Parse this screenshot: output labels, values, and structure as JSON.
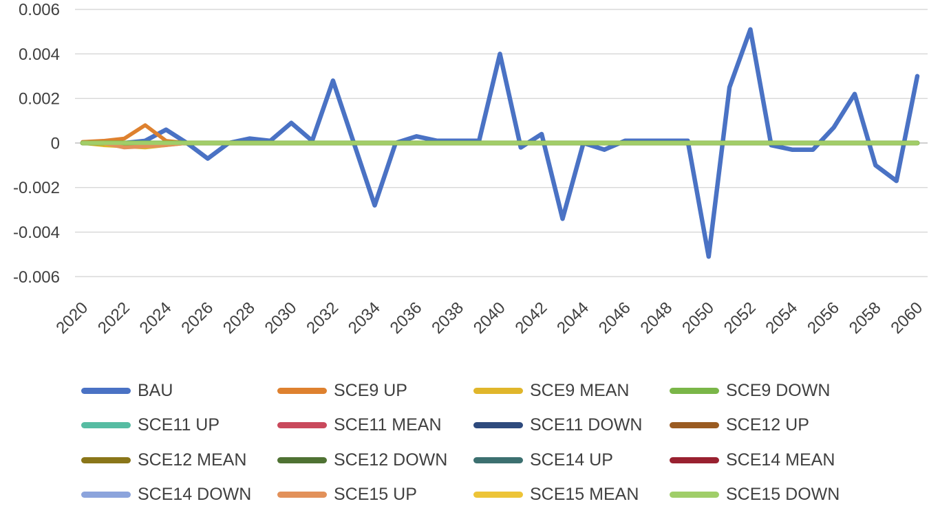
{
  "figure": {
    "background": "#ffffff",
    "text_color": "#404040",
    "gridline_color": "#d9d9d9",
    "axis_line_color": "#bfbfbf"
  },
  "chart_data": {
    "type": "line",
    "title": "",
    "xlabel": "",
    "ylabel": "",
    "x_start": 2020,
    "x_end": 2060,
    "x_tick_step": 2,
    "x_tick_labels": [
      "2020",
      "2022",
      "2024",
      "2026",
      "2028",
      "2030",
      "2032",
      "2034",
      "2036",
      "2038",
      "2040",
      "2042",
      "2044",
      "2046",
      "2048",
      "2050",
      "2052",
      "2054",
      "2056",
      "2058",
      "2060"
    ],
    "y_ticks": [
      0.006,
      0.004,
      0.002,
      0,
      -0.002,
      -0.004,
      -0.006
    ],
    "y_tick_labels": [
      "0.006",
      "0.004",
      "0.002",
      "0",
      "-0.002",
      "-0.004",
      "-0.006"
    ],
    "ylim": [
      -0.006,
      0.006
    ],
    "grid": "horizontal",
    "legend_position": "bottom",
    "legend_columns": 4,
    "series": [
      {
        "name": "BAU",
        "color": "#4a72c4",
        "stroke_width": 6.5,
        "values": [
          0,
          0,
          0,
          0.0001,
          0.0006,
          0,
          -0.0007,
          0,
          0.0002,
          0.0001,
          0.0009,
          0.0001,
          0.0028,
          0,
          -0.0028,
          0,
          0.0003,
          0.0001,
          0.0001,
          0.0001,
          0.004,
          -0.0002,
          0.0004,
          -0.0034,
          0,
          -0.0003,
          0.0001,
          0.0001,
          0.0001,
          0.0001,
          -0.0051,
          0.0025,
          0.0051,
          -0.0001,
          -0.0003,
          -0.0003,
          0.0007,
          0.0022,
          -0.001,
          -0.0017,
          0.003
        ]
      },
      {
        "name": "SCE9 UP",
        "color": "#de812f",
        "stroke_width": 5.5,
        "values": [
          5e-05,
          0.0001,
          0.0002,
          0.0008,
          0.0001,
          0,
          0,
          0,
          0,
          0,
          0,
          0,
          0,
          0,
          0,
          0,
          0,
          0,
          0,
          0,
          0,
          0,
          0,
          0,
          0,
          0,
          0,
          0,
          0,
          0,
          0,
          0,
          0,
          0,
          0,
          0,
          0,
          0,
          0,
          0,
          0
        ]
      },
      {
        "name": "SCE9 MEAN",
        "color": "#e0b62b",
        "stroke_width": 5.5,
        "values": [
          0,
          -0.0001,
          -0.00015,
          -0.0002,
          -0.0001,
          0,
          0,
          0,
          0,
          0,
          0,
          0,
          0,
          0,
          0,
          0,
          0,
          0,
          0,
          0,
          0,
          0,
          0,
          0,
          0,
          0,
          0,
          0,
          0,
          0,
          0,
          0,
          0,
          0,
          0,
          0,
          0,
          0,
          0,
          0,
          0
        ]
      },
      {
        "name": "SCE9 DOWN",
        "color": "#7ab648",
        "stroke_width": 7,
        "values": [
          0,
          0,
          0,
          0,
          0,
          0,
          0,
          0,
          0,
          0,
          0,
          0,
          0,
          0,
          0,
          0,
          0,
          0,
          0,
          0,
          0,
          0,
          0,
          0,
          0,
          0,
          0,
          0,
          0,
          0,
          0,
          0,
          0,
          0,
          0,
          0,
          0,
          0,
          0,
          0,
          0
        ]
      },
      {
        "name": "SCE11 UP",
        "color": "#56bca2",
        "stroke_width": 4.5,
        "values": [
          0,
          0,
          0,
          0,
          0,
          0,
          0,
          0,
          0,
          0,
          0,
          0,
          0,
          0,
          0,
          0,
          0,
          0,
          0,
          0,
          0,
          0,
          0,
          0,
          0,
          0,
          0,
          0,
          0,
          0,
          0,
          0,
          0,
          0,
          0,
          0,
          0,
          0,
          0,
          0,
          0
        ]
      },
      {
        "name": "SCE11 MEAN",
        "color": "#c9495c",
        "stroke_width": 4.5,
        "values": [
          0,
          0,
          0,
          0,
          0,
          0,
          0,
          0,
          0,
          0,
          0,
          0,
          0,
          0,
          0,
          0,
          0,
          0,
          0,
          0,
          0,
          0,
          0,
          0,
          0,
          0,
          0,
          0,
          0,
          0,
          0,
          0,
          0,
          0,
          0,
          0,
          0,
          0,
          0,
          0,
          0
        ]
      },
      {
        "name": "SCE11 DOWN",
        "color": "#2e4a7d",
        "stroke_width": 4.5,
        "values": [
          0,
          0,
          0,
          0,
          0,
          0,
          0,
          0,
          0,
          0,
          0,
          0,
          0,
          0,
          0,
          0,
          0,
          0,
          0,
          0,
          0,
          0,
          0,
          0,
          0,
          0,
          0,
          0,
          0,
          0,
          0,
          0,
          0,
          0,
          0,
          0,
          0,
          0,
          0,
          0,
          0
        ]
      },
      {
        "name": "SCE12 UP",
        "color": "#9a5b21",
        "stroke_width": 4.5,
        "values": [
          0,
          0,
          0,
          0,
          0,
          0,
          0,
          0,
          0,
          0,
          0,
          0,
          0,
          0,
          0,
          0,
          0,
          0,
          0,
          0,
          0,
          0,
          0,
          0,
          0,
          0,
          0,
          0,
          0,
          0,
          0,
          0,
          0,
          0,
          0,
          0,
          0,
          0,
          0,
          0,
          0
        ]
      },
      {
        "name": "SCE12 MEAN",
        "color": "#8a7619",
        "stroke_width": 4.5,
        "values": [
          0,
          0,
          0,
          0,
          0,
          0,
          0,
          0,
          0,
          0,
          0,
          0,
          0,
          0,
          0,
          0,
          0,
          0,
          0,
          0,
          0,
          0,
          0,
          0,
          0,
          0,
          0,
          0,
          0,
          0,
          0,
          0,
          0,
          0,
          0,
          0,
          0,
          0,
          0,
          0,
          0
        ]
      },
      {
        "name": "SCE12 DOWN",
        "color": "#4f7233",
        "stroke_width": 4.5,
        "values": [
          0,
          0,
          0,
          0,
          0,
          0,
          0,
          0,
          0,
          0,
          0,
          0,
          0,
          0,
          0,
          0,
          0,
          0,
          0,
          0,
          0,
          0,
          0,
          0,
          0,
          0,
          0,
          0,
          0,
          0,
          0,
          0,
          0,
          0,
          0,
          0,
          0,
          0,
          0,
          0,
          0
        ]
      },
      {
        "name": "SCE14 UP",
        "color": "#3c7070",
        "stroke_width": 4.5,
        "values": [
          0,
          0,
          0,
          0,
          0,
          0,
          0,
          0,
          0,
          0,
          0,
          0,
          0,
          0,
          0,
          0,
          0,
          0,
          0,
          0,
          0,
          0,
          0,
          0,
          0,
          0,
          0,
          0,
          0,
          0,
          0,
          0,
          0,
          0,
          0,
          0,
          0,
          0,
          0,
          0,
          0
        ]
      },
      {
        "name": "SCE14 MEAN",
        "color": "#992130",
        "stroke_width": 4.5,
        "values": [
          0,
          0,
          0,
          0,
          0,
          0,
          0,
          0,
          0,
          0,
          0,
          0,
          0,
          0,
          0,
          0,
          0,
          0,
          0,
          0,
          0,
          0,
          0,
          0,
          0,
          0,
          0,
          0,
          0,
          0,
          0,
          0,
          0,
          0,
          0,
          0,
          0,
          0,
          0,
          0,
          0
        ]
      },
      {
        "name": "SCE14 DOWN",
        "color": "#8ca4dc",
        "stroke_width": 4.5,
        "values": [
          0,
          0,
          0,
          0,
          0,
          0,
          0,
          0,
          0,
          0,
          0,
          0,
          0,
          0,
          0,
          0,
          0,
          0,
          0,
          0,
          0,
          0,
          0,
          0,
          0,
          0,
          0,
          0,
          0,
          0,
          0,
          0,
          0,
          0,
          0,
          0,
          0,
          0,
          0,
          0,
          0
        ]
      },
      {
        "name": "SCE15 UP",
        "color": "#e2915a",
        "stroke_width": 5.5,
        "values": [
          0,
          0,
          -0.0002,
          -0.00015,
          -0.0001,
          0,
          0,
          0,
          0,
          0,
          0,
          0,
          0,
          0,
          0,
          0,
          0,
          0,
          0,
          0,
          0,
          0,
          0,
          0,
          0,
          0,
          0,
          0,
          0,
          0,
          0,
          0,
          0,
          0,
          0,
          0,
          0,
          0,
          0,
          0,
          0
        ]
      },
      {
        "name": "SCE15 MEAN",
        "color": "#edc437",
        "stroke_width": 5,
        "values": [
          0,
          0,
          0,
          0,
          0,
          0,
          0,
          0,
          0,
          0,
          0,
          0,
          0,
          0,
          0,
          0,
          0,
          0,
          0,
          0,
          0,
          0,
          0,
          0,
          0,
          0,
          0,
          0,
          0,
          0,
          0,
          0,
          0,
          0,
          0,
          0,
          0,
          0,
          0,
          0,
          0
        ]
      },
      {
        "name": "SCE15 DOWN",
        "color": "#a0ce69",
        "stroke_width": 5.5,
        "values": [
          0,
          0,
          0,
          0,
          0,
          0,
          0,
          0,
          0,
          0,
          0,
          0,
          0,
          0,
          0,
          0,
          0,
          0,
          0,
          0,
          0,
          0,
          0,
          0,
          0,
          0,
          0,
          0,
          0,
          0,
          0,
          0,
          0,
          0,
          0,
          0,
          0,
          0,
          0,
          0,
          0
        ]
      }
    ]
  }
}
